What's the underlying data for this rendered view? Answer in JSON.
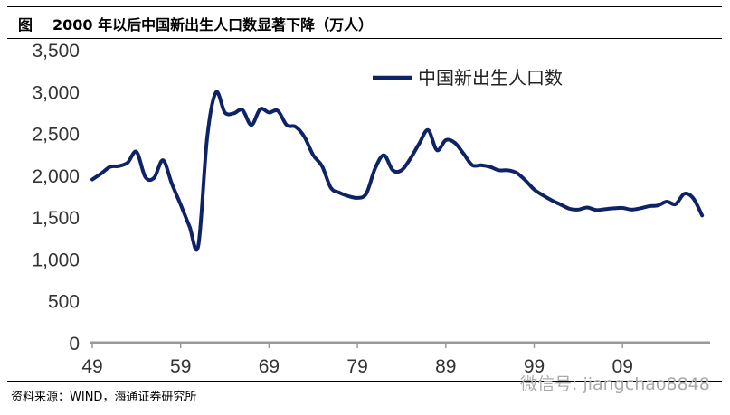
{
  "header": {
    "figure_label": "图",
    "title": "2000 年以后中国新出生人口数显著下降（万人）"
  },
  "footer": {
    "source": "资料来源：WIND，海通证券研究所",
    "watermark": "微信号: jiangchao8848"
  },
  "chart_data": {
    "type": "line",
    "title": "2000 年以后中国新出生人口数显著下降（万人）",
    "xlabel": "",
    "ylabel": "",
    "ylim": [
      0,
      3500
    ],
    "yticks": [
      "0",
      "500",
      "1,000",
      "1,500",
      "2,000",
      "2,500",
      "3,000",
      "3,500"
    ],
    "xticks": [
      "49",
      "59",
      "69",
      "79",
      "89",
      "99",
      "09"
    ],
    "legend_position": "top-right",
    "grid": false,
    "series": [
      {
        "name": "中国新出生人口数",
        "color": "#0d2366",
        "x": [
          1949,
          1950,
          1951,
          1952,
          1953,
          1954,
          1955,
          1956,
          1957,
          1958,
          1959,
          1960,
          1961,
          1962,
          1963,
          1964,
          1965,
          1966,
          1967,
          1968,
          1969,
          1970,
          1971,
          1972,
          1973,
          1974,
          1975,
          1976,
          1977,
          1978,
          1979,
          1980,
          1981,
          1982,
          1983,
          1984,
          1985,
          1986,
          1987,
          1988,
          1989,
          1990,
          1991,
          1992,
          1993,
          1994,
          1995,
          1996,
          1997,
          1998,
          1999,
          2000,
          2001,
          2002,
          2003,
          2004,
          2005,
          2006,
          2007,
          2008,
          2009,
          2010,
          2011,
          2012,
          2013,
          2014,
          2015,
          2016,
          2017,
          2018
        ],
        "values": [
          1950,
          2020,
          2100,
          2110,
          2150,
          2280,
          1980,
          1970,
          2180,
          1900,
          1650,
          1390,
          1160,
          2450,
          2990,
          2750,
          2740,
          2780,
          2600,
          2790,
          2750,
          2770,
          2600,
          2580,
          2460,
          2240,
          2110,
          1850,
          1790,
          1750,
          1730,
          1780,
          2080,
          2240,
          2060,
          2060,
          2200,
          2380,
          2540,
          2300,
          2420,
          2390,
          2260,
          2120,
          2120,
          2100,
          2060,
          2060,
          2030,
          1940,
          1830,
          1760,
          1700,
          1650,
          1600,
          1590,
          1615,
          1585,
          1595,
          1605,
          1610,
          1590,
          1605,
          1630,
          1640,
          1685,
          1655,
          1780,
          1725,
          1520
        ]
      }
    ]
  }
}
